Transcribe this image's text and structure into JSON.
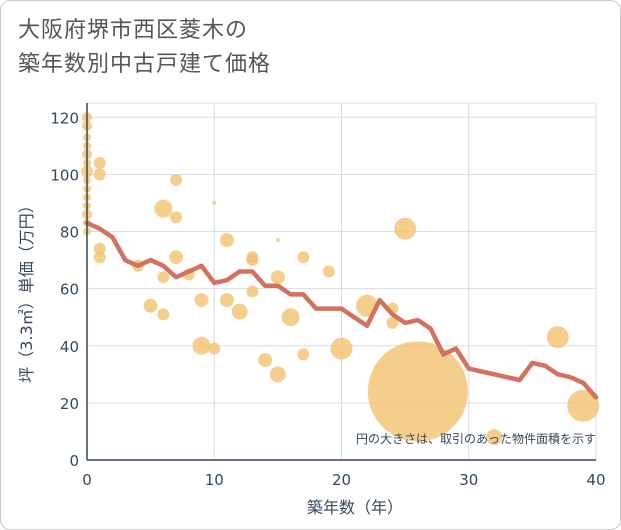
{
  "title_line1": "大阪府堺市西区菱木の",
  "title_line2": "築年数別中古戸建て価格",
  "chart_data": {
    "type": "scatter",
    "title": "大阪府堺市西区菱木の築年数別中古戸建て価格",
    "xlabel": "築年数（年）",
    "ylabel": "坪（3.3㎡）単価（万円）",
    "xlim": [
      0,
      40
    ],
    "ylim": [
      0,
      125
    ],
    "xticks": [
      0,
      10,
      20,
      30,
      40
    ],
    "yticks": [
      0,
      20,
      40,
      60,
      80,
      100,
      120
    ],
    "grid": true,
    "note": "円の大きさは、取引のあった物件面積を示す",
    "colors": {
      "bubble": "#f3c06b",
      "line": "#d3705e",
      "grid": "#d5dde6",
      "axis": "#34495e"
    },
    "points": [
      {
        "x": 0,
        "y": 120,
        "s": 5
      },
      {
        "x": 0,
        "y": 117,
        "s": 5
      },
      {
        "x": 0,
        "y": 113,
        "s": 4
      },
      {
        "x": 0,
        "y": 110,
        "s": 4
      },
      {
        "x": 0,
        "y": 107,
        "s": 5
      },
      {
        "x": 0,
        "y": 104,
        "s": 4
      },
      {
        "x": 0,
        "y": 101,
        "s": 6
      },
      {
        "x": 0,
        "y": 98,
        "s": 4
      },
      {
        "x": 0,
        "y": 95,
        "s": 4
      },
      {
        "x": 0,
        "y": 92,
        "s": 4
      },
      {
        "x": 0,
        "y": 89,
        "s": 4
      },
      {
        "x": 0,
        "y": 86,
        "s": 5
      },
      {
        "x": 0,
        "y": 83,
        "s": 4
      },
      {
        "x": 0,
        "y": 80,
        "s": 4
      },
      {
        "x": 1,
        "y": 104,
        "s": 6
      },
      {
        "x": 1,
        "y": 100,
        "s": 6
      },
      {
        "x": 1,
        "y": 74,
        "s": 6
      },
      {
        "x": 1,
        "y": 71,
        "s": 6
      },
      {
        "x": 4,
        "y": 68,
        "s": 6
      },
      {
        "x": 5,
        "y": 54,
        "s": 7
      },
      {
        "x": 6,
        "y": 88,
        "s": 9
      },
      {
        "x": 6,
        "y": 64,
        "s": 6
      },
      {
        "x": 6,
        "y": 51,
        "s": 6
      },
      {
        "x": 7,
        "y": 98,
        "s": 6
      },
      {
        "x": 7,
        "y": 85,
        "s": 6
      },
      {
        "x": 7,
        "y": 71,
        "s": 7
      },
      {
        "x": 8,
        "y": 65,
        "s": 6
      },
      {
        "x": 9,
        "y": 56,
        "s": 7
      },
      {
        "x": 9,
        "y": 40,
        "s": 9
      },
      {
        "x": 10,
        "y": 90,
        "s": 2
      },
      {
        "x": 10,
        "y": 39,
        "s": 6
      },
      {
        "x": 11,
        "y": 77,
        "s": 7
      },
      {
        "x": 11,
        "y": 56,
        "s": 7
      },
      {
        "x": 12,
        "y": 52,
        "s": 8
      },
      {
        "x": 13,
        "y": 71,
        "s": 6
      },
      {
        "x": 13,
        "y": 70,
        "s": 6
      },
      {
        "x": 13,
        "y": 59,
        "s": 6
      },
      {
        "x": 14,
        "y": 35,
        "s": 7
      },
      {
        "x": 15,
        "y": 77,
        "s": 2
      },
      {
        "x": 15,
        "y": 64,
        "s": 7
      },
      {
        "x": 15,
        "y": 30,
        "s": 8
      },
      {
        "x": 16,
        "y": 50,
        "s": 9
      },
      {
        "x": 17,
        "y": 71,
        "s": 6
      },
      {
        "x": 17,
        "y": 37,
        "s": 6
      },
      {
        "x": 19,
        "y": 66,
        "s": 6
      },
      {
        "x": 20,
        "y": 39,
        "s": 11
      },
      {
        "x": 22,
        "y": 54,
        "s": 11
      },
      {
        "x": 24,
        "y": 53,
        "s": 6
      },
      {
        "x": 24,
        "y": 48,
        "s": 6
      },
      {
        "x": 25,
        "y": 81,
        "s": 11
      },
      {
        "x": 26,
        "y": 24,
        "s": 50
      },
      {
        "x": 32,
        "y": 8,
        "s": 8
      },
      {
        "x": 37,
        "y": 43,
        "s": 11
      },
      {
        "x": 39,
        "y": 19,
        "s": 16
      }
    ],
    "trend": {
      "x": [
        0,
        1,
        2,
        3,
        4,
        5,
        6,
        7,
        8,
        9,
        10,
        11,
        12,
        13,
        14,
        15,
        16,
        17,
        18,
        19,
        20,
        21,
        22,
        23,
        24,
        25,
        26,
        27,
        28,
        29,
        30,
        31,
        32,
        33,
        34,
        35,
        36,
        37,
        38,
        39,
        40
      ],
      "y": [
        83,
        81,
        78,
        70,
        68,
        70,
        68,
        64,
        66,
        68,
        62,
        63,
        66,
        66,
        61,
        61,
        58,
        58,
        53,
        53,
        53,
        50,
        47,
        56,
        51,
        48,
        49,
        46,
        37,
        39,
        32,
        31,
        30,
        29,
        28,
        34,
        33,
        30,
        29,
        27,
        22
      ]
    }
  }
}
